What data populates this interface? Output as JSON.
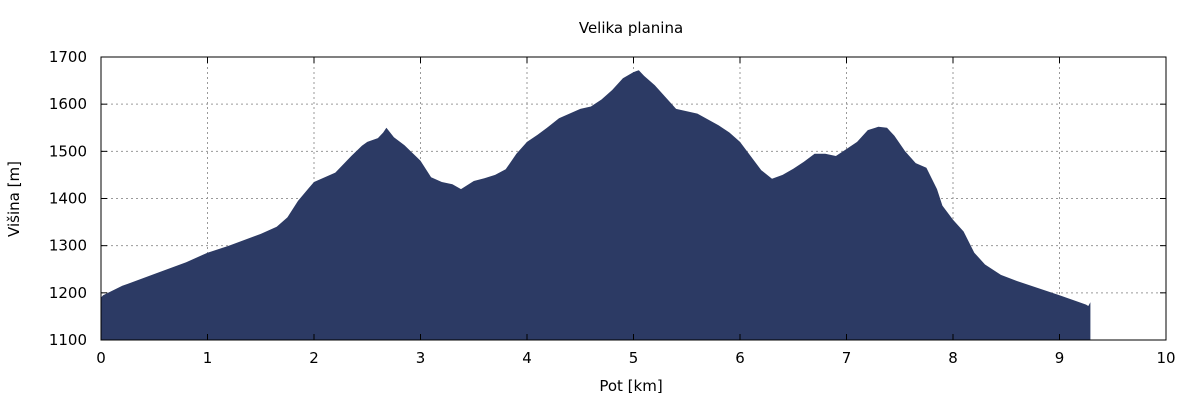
{
  "chart_data": {
    "type": "area",
    "title": "Velika planina",
    "xlabel": "Pot [km]",
    "ylabel": "Višina [m]",
    "xlim": [
      0,
      10
    ],
    "ylim": [
      1100,
      1700
    ],
    "xticks": [
      0,
      1,
      2,
      3,
      4,
      5,
      6,
      7,
      8,
      9,
      10
    ],
    "yticks": [
      1100,
      1200,
      1300,
      1400,
      1500,
      1600,
      1700
    ],
    "grid": true,
    "fill_color": "#2c3a64",
    "series": [
      {
        "x": [
          0,
          0.02,
          0.2,
          0.5,
          0.8,
          1.0,
          1.2,
          1.5,
          1.65,
          1.75,
          1.85,
          1.95,
          2.0,
          2.2,
          2.35,
          2.45,
          2.5,
          2.6,
          2.65,
          2.68,
          2.75,
          2.85,
          3.0,
          3.1,
          3.2,
          3.3,
          3.38,
          3.5,
          3.6,
          3.7,
          3.8,
          3.9,
          4.0,
          4.1,
          4.2,
          4.3,
          4.5,
          4.6,
          4.7,
          4.8,
          4.9,
          5.0,
          5.05,
          5.1,
          5.2,
          5.3,
          5.4,
          5.6,
          5.8,
          5.9,
          6.0,
          6.1,
          6.2,
          6.3,
          6.4,
          6.5,
          6.6,
          6.7,
          6.8,
          6.9,
          7.0,
          7.1,
          7.2,
          7.3,
          7.38,
          7.45,
          7.55,
          7.65,
          7.75,
          7.85,
          7.9,
          8.0,
          8.1,
          8.2,
          8.3,
          8.45,
          8.6,
          8.8,
          9.0,
          9.15,
          9.25,
          9.27,
          9.29
        ],
        "y": [
          1190,
          1195,
          1215,
          1240,
          1265,
          1285,
          1300,
          1325,
          1340,
          1360,
          1395,
          1422,
          1435,
          1455,
          1490,
          1512,
          1520,
          1528,
          1540,
          1550,
          1530,
          1513,
          1480,
          1445,
          1435,
          1430,
          1420,
          1437,
          1443,
          1450,
          1462,
          1495,
          1520,
          1535,
          1552,
          1570,
          1590,
          1595,
          1610,
          1630,
          1655,
          1668,
          1672,
          1660,
          1640,
          1615,
          1590,
          1580,
          1555,
          1540,
          1520,
          1490,
          1460,
          1442,
          1450,
          1463,
          1478,
          1495,
          1495,
          1490,
          1505,
          1520,
          1545,
          1552,
          1550,
          1533,
          1500,
          1475,
          1465,
          1420,
          1385,
          1355,
          1330,
          1285,
          1260,
          1238,
          1225,
          1210,
          1195,
          1183,
          1175,
          1172,
          1180
        ]
      }
    ]
  }
}
